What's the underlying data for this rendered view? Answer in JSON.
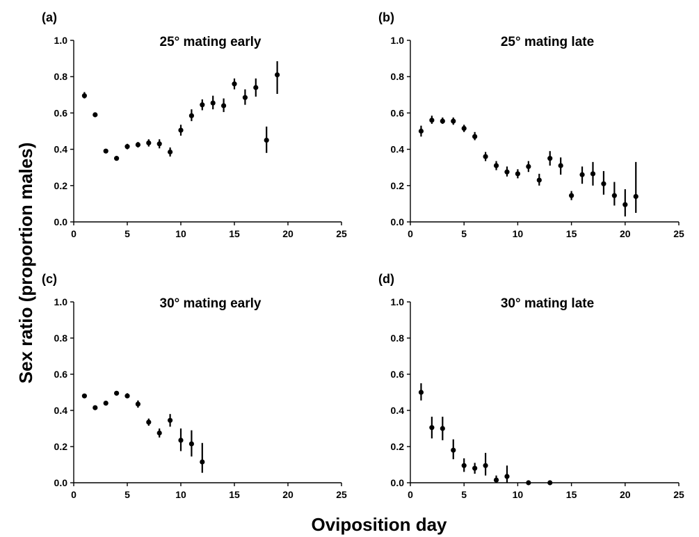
{
  "figure": {
    "ylabel": "Sex ratio (proportion males)",
    "xlabel": "Oviposition day"
  },
  "chart_data": [
    {
      "type": "scatter",
      "panel": "(a)",
      "title": "25° mating early",
      "xlim": [
        0,
        25
      ],
      "ylim": [
        0,
        1
      ],
      "xticks": [
        "0",
        "5",
        "10",
        "15",
        "20",
        "25"
      ],
      "yticks": [
        "0.0",
        "0.2",
        "0.4",
        "0.6",
        "0.8",
        "1.0"
      ],
      "error_bars": true,
      "points": [
        {
          "x": 1,
          "y": 0.695,
          "lo": 0.68,
          "hi": 0.715
        },
        {
          "x": 2,
          "y": 0.59,
          "lo": 0.585,
          "hi": 0.595
        },
        {
          "x": 3,
          "y": 0.39,
          "lo": 0.385,
          "hi": 0.395
        },
        {
          "x": 4,
          "y": 0.35,
          "lo": 0.345,
          "hi": 0.355
        },
        {
          "x": 5,
          "y": 0.415,
          "lo": 0.4,
          "hi": 0.43
        },
        {
          "x": 6,
          "y": 0.425,
          "lo": 0.41,
          "hi": 0.44
        },
        {
          "x": 7,
          "y": 0.435,
          "lo": 0.415,
          "hi": 0.455
        },
        {
          "x": 8,
          "y": 0.43,
          "lo": 0.405,
          "hi": 0.455
        },
        {
          "x": 9,
          "y": 0.385,
          "lo": 0.36,
          "hi": 0.41
        },
        {
          "x": 10,
          "y": 0.505,
          "lo": 0.475,
          "hi": 0.535
        },
        {
          "x": 11,
          "y": 0.585,
          "lo": 0.555,
          "hi": 0.62
        },
        {
          "x": 12,
          "y": 0.645,
          "lo": 0.615,
          "hi": 0.675
        },
        {
          "x": 13,
          "y": 0.655,
          "lo": 0.62,
          "hi": 0.695
        },
        {
          "x": 14,
          "y": 0.64,
          "lo": 0.605,
          "hi": 0.68
        },
        {
          "x": 15,
          "y": 0.76,
          "lo": 0.73,
          "hi": 0.79
        },
        {
          "x": 16,
          "y": 0.685,
          "lo": 0.645,
          "hi": 0.73
        },
        {
          "x": 17,
          "y": 0.74,
          "lo": 0.69,
          "hi": 0.79
        },
        {
          "x": 18,
          "y": 0.45,
          "lo": 0.38,
          "hi": 0.525
        },
        {
          "x": 19,
          "y": 0.81,
          "lo": 0.705,
          "hi": 0.885
        }
      ]
    },
    {
      "type": "scatter",
      "panel": "(b)",
      "title": "25° mating late",
      "xlim": [
        0,
        25
      ],
      "ylim": [
        0,
        1
      ],
      "xticks": [
        "0",
        "5",
        "10",
        "15",
        "20",
        "25"
      ],
      "yticks": [
        "0.0",
        "0.2",
        "0.4",
        "0.6",
        "0.8",
        "1.0"
      ],
      "error_bars": true,
      "points": [
        {
          "x": 1,
          "y": 0.5,
          "lo": 0.47,
          "hi": 0.53
        },
        {
          "x": 2,
          "y": 0.56,
          "lo": 0.54,
          "hi": 0.585
        },
        {
          "x": 3,
          "y": 0.555,
          "lo": 0.54,
          "hi": 0.575
        },
        {
          "x": 4,
          "y": 0.555,
          "lo": 0.535,
          "hi": 0.575
        },
        {
          "x": 5,
          "y": 0.515,
          "lo": 0.495,
          "hi": 0.535
        },
        {
          "x": 6,
          "y": 0.47,
          "lo": 0.45,
          "hi": 0.495
        },
        {
          "x": 7,
          "y": 0.36,
          "lo": 0.335,
          "hi": 0.385
        },
        {
          "x": 8,
          "y": 0.31,
          "lo": 0.285,
          "hi": 0.335
        },
        {
          "x": 9,
          "y": 0.275,
          "lo": 0.25,
          "hi": 0.305
        },
        {
          "x": 10,
          "y": 0.265,
          "lo": 0.24,
          "hi": 0.29
        },
        {
          "x": 11,
          "y": 0.305,
          "lo": 0.275,
          "hi": 0.335
        },
        {
          "x": 12,
          "y": 0.23,
          "lo": 0.2,
          "hi": 0.265
        },
        {
          "x": 13,
          "y": 0.35,
          "lo": 0.31,
          "hi": 0.39
        },
        {
          "x": 14,
          "y": 0.31,
          "lo": 0.26,
          "hi": 0.355
        },
        {
          "x": 15,
          "y": 0.145,
          "lo": 0.12,
          "hi": 0.17
        },
        {
          "x": 16,
          "y": 0.26,
          "lo": 0.21,
          "hi": 0.305
        },
        {
          "x": 17,
          "y": 0.265,
          "lo": 0.2,
          "hi": 0.33
        },
        {
          "x": 18,
          "y": 0.21,
          "lo": 0.15,
          "hi": 0.28
        },
        {
          "x": 19,
          "y": 0.145,
          "lo": 0.09,
          "hi": 0.22
        },
        {
          "x": 20,
          "y": 0.095,
          "lo": 0.03,
          "hi": 0.18
        },
        {
          "x": 21,
          "y": 0.14,
          "lo": 0.05,
          "hi": 0.33
        }
      ]
    },
    {
      "type": "scatter",
      "panel": "(c)",
      "title": "30° mating early",
      "xlim": [
        0,
        25
      ],
      "ylim": [
        0,
        1
      ],
      "xticks": [
        "0",
        "5",
        "10",
        "15",
        "20",
        "25"
      ],
      "yticks": [
        "0.0",
        "0.2",
        "0.4",
        "0.6",
        "0.8",
        "1.0"
      ],
      "error_bars": true,
      "points": [
        {
          "x": 1,
          "y": 0.48,
          "lo": 0.47,
          "hi": 0.49
        },
        {
          "x": 2,
          "y": 0.415,
          "lo": 0.41,
          "hi": 0.42
        },
        {
          "x": 3,
          "y": 0.44,
          "lo": 0.435,
          "hi": 0.45
        },
        {
          "x": 4,
          "y": 0.495,
          "lo": 0.49,
          "hi": 0.5
        },
        {
          "x": 5,
          "y": 0.48,
          "lo": 0.47,
          "hi": 0.495
        },
        {
          "x": 6,
          "y": 0.435,
          "lo": 0.415,
          "hi": 0.455
        },
        {
          "x": 7,
          "y": 0.335,
          "lo": 0.315,
          "hi": 0.355
        },
        {
          "x": 8,
          "y": 0.275,
          "lo": 0.25,
          "hi": 0.3
        },
        {
          "x": 9,
          "y": 0.345,
          "lo": 0.31,
          "hi": 0.38
        },
        {
          "x": 10,
          "y": 0.235,
          "lo": 0.175,
          "hi": 0.3
        },
        {
          "x": 11,
          "y": 0.215,
          "lo": 0.145,
          "hi": 0.29
        },
        {
          "x": 12,
          "y": 0.115,
          "lo": 0.055,
          "hi": 0.22
        }
      ]
    },
    {
      "type": "scatter",
      "panel": "(d)",
      "title": "30° mating late",
      "xlim": [
        0,
        25
      ],
      "ylim": [
        0,
        1
      ],
      "xticks": [
        "0",
        "5",
        "10",
        "15",
        "20",
        "25"
      ],
      "yticks": [
        "0.0",
        "0.2",
        "0.4",
        "0.6",
        "0.8",
        "1.0"
      ],
      "error_bars": true,
      "points": [
        {
          "x": 1,
          "y": 0.5,
          "lo": 0.455,
          "hi": 0.55
        },
        {
          "x": 2,
          "y": 0.305,
          "lo": 0.245,
          "hi": 0.365
        },
        {
          "x": 3,
          "y": 0.3,
          "lo": 0.235,
          "hi": 0.365
        },
        {
          "x": 4,
          "y": 0.18,
          "lo": 0.13,
          "hi": 0.24
        },
        {
          "x": 5,
          "y": 0.095,
          "lo": 0.06,
          "hi": 0.135
        },
        {
          "x": 6,
          "y": 0.08,
          "lo": 0.05,
          "hi": 0.11
        },
        {
          "x": 7,
          "y": 0.095,
          "lo": 0.04,
          "hi": 0.165
        },
        {
          "x": 8,
          "y": 0.015,
          "lo": 0.0,
          "hi": 0.04
        },
        {
          "x": 9,
          "y": 0.035,
          "lo": 0.0,
          "hi": 0.095
        },
        {
          "x": 11,
          "y": 0.0,
          "lo": 0.0,
          "hi": 0.0
        },
        {
          "x": 13,
          "y": 0.0,
          "lo": 0.0,
          "hi": 0.0
        }
      ]
    }
  ]
}
